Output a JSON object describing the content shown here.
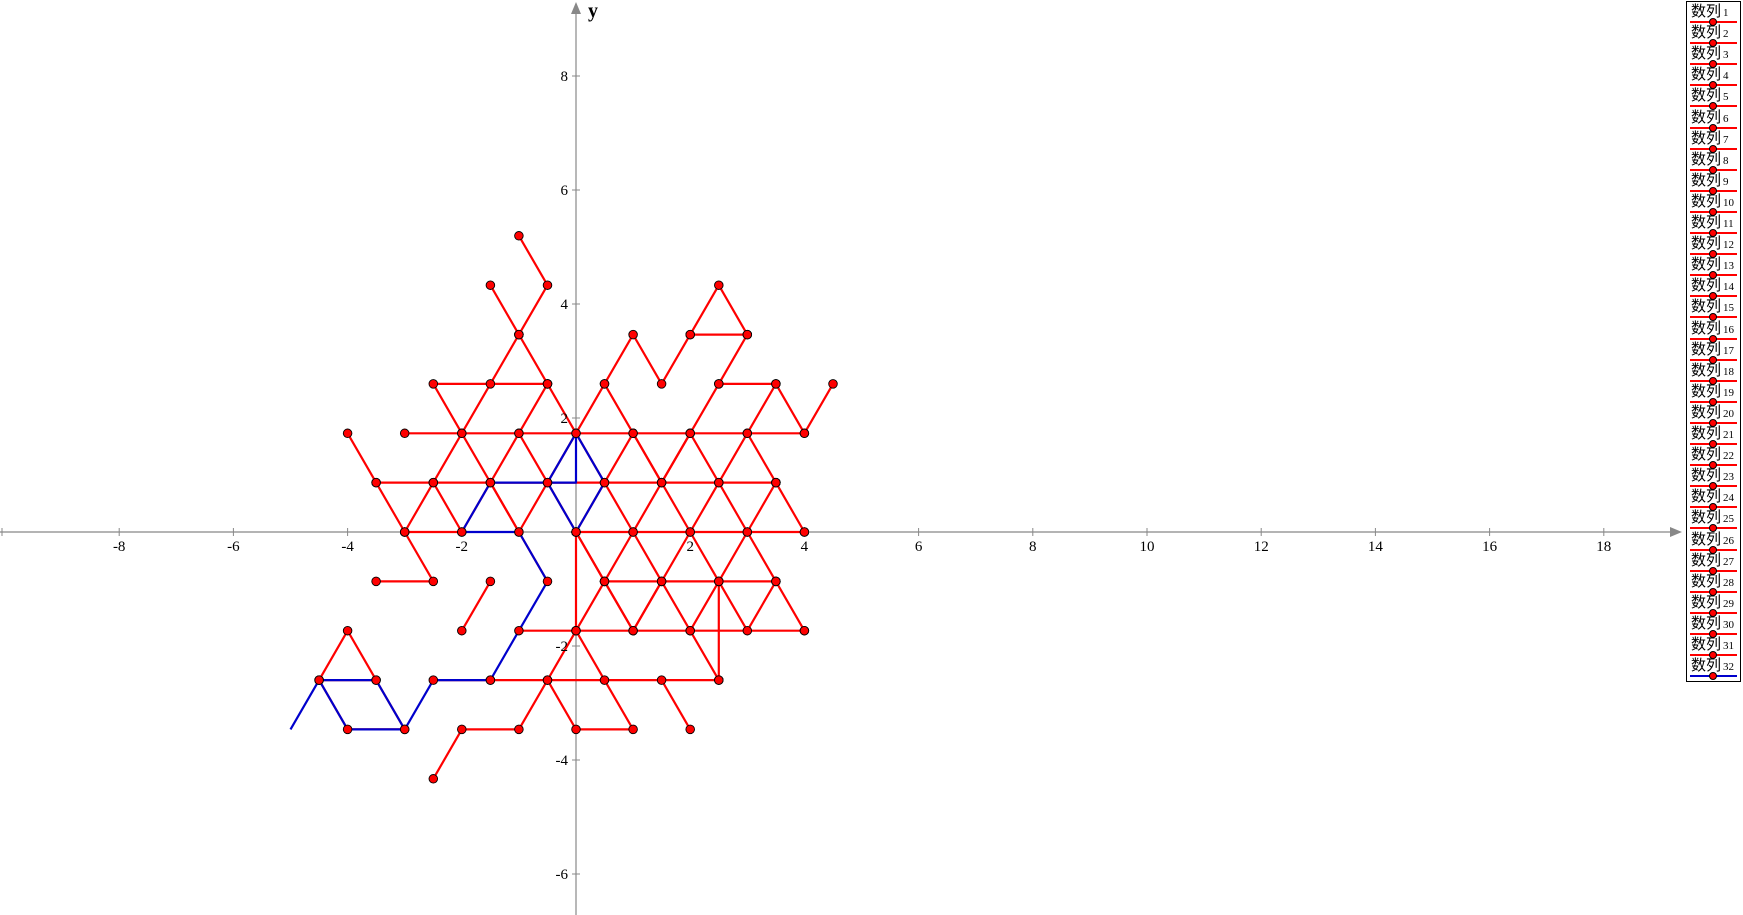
{
  "chart_data": {
    "type": "line",
    "title": "",
    "xlabel": "",
    "ylabel": "y",
    "xlim": [
      -10,
      20
    ],
    "ylim": [
      -6.7,
      9.3
    ],
    "x_ticks": [
      -8,
      -6,
      -4,
      -2,
      2,
      4,
      6,
      8,
      10,
      12,
      14,
      16,
      18
    ],
    "y_ticks": [
      -6,
      -4,
      -2,
      2,
      4,
      6,
      8
    ],
    "legend_position": "right",
    "colors": {
      "red": "#ff0000",
      "blue": "#0000cc",
      "marker_edge": "#000000"
    },
    "series": [
      {
        "name": "数列 1",
        "color": "red",
        "points": [
          [
            -1,
            5.196
          ],
          [
            -0.5,
            4.33
          ],
          [
            -1,
            3.464
          ],
          [
            -1.5,
            4.33
          ]
        ]
      },
      {
        "name": "数列 2",
        "color": "red",
        "points": [
          [
            -1,
            3.464
          ],
          [
            -1.5,
            2.598
          ],
          [
            -2,
            1.732
          ],
          [
            -2.5,
            2.598
          ],
          [
            -0.5,
            2.598
          ]
        ]
      },
      {
        "name": "数列 3",
        "color": "red",
        "points": [
          [
            -1,
            3.464
          ],
          [
            -0.5,
            2.598
          ],
          [
            0,
            1.732
          ],
          [
            0.5,
            2.598
          ],
          [
            1,
            3.464
          ],
          [
            1.5,
            2.598
          ],
          [
            2,
            3.464
          ],
          [
            2.5,
            4.33
          ],
          [
            3,
            3.464
          ],
          [
            2,
            3.464
          ]
        ]
      },
      {
        "name": "数列 4",
        "color": "red",
        "points": [
          [
            3,
            3.464
          ],
          [
            2.5,
            2.598
          ],
          [
            2,
            1.732
          ],
          [
            1.5,
            0.866
          ],
          [
            1,
            1.732
          ],
          [
            0.5,
            2.598
          ]
        ]
      },
      {
        "name": "数列 5",
        "color": "red",
        "points": [
          [
            2.5,
            2.598
          ],
          [
            3.5,
            2.598
          ],
          [
            3,
            1.732
          ],
          [
            2.5,
            0.866
          ],
          [
            2,
            1.732
          ]
        ]
      },
      {
        "name": "数列 6",
        "color": "red",
        "points": [
          [
            3.5,
            2.598
          ],
          [
            4,
            1.732
          ],
          [
            4.5,
            2.598
          ]
        ]
      },
      {
        "name": "数列 7",
        "color": "red",
        "points": [
          [
            -4,
            1.732
          ],
          [
            -3.5,
            0.866
          ],
          [
            -3,
            0
          ],
          [
            -2.5,
            -0.866
          ],
          [
            -3.5,
            -0.866
          ]
        ]
      },
      {
        "name": "数列 8",
        "color": "red",
        "points": [
          [
            -3,
            1.732
          ],
          [
            4,
            1.732
          ]
        ]
      },
      {
        "name": "数列 9",
        "color": "red",
        "points": [
          [
            -3.5,
            0.866
          ],
          [
            3.5,
            0.866
          ]
        ]
      },
      {
        "name": "数列 10",
        "color": "red",
        "points": [
          [
            -3,
            0
          ],
          [
            -2,
            0
          ]
        ]
      },
      {
        "name": "数列 11",
        "color": "red",
        "points": [
          [
            0,
            0
          ],
          [
            4,
            0
          ]
        ]
      },
      {
        "name": "数列 12",
        "color": "red",
        "points": [
          [
            -3,
            0
          ],
          [
            -2.5,
            0.866
          ],
          [
            -2,
            1.732
          ],
          [
            -1.5,
            0.866
          ],
          [
            -1,
            1.732
          ],
          [
            -0.5,
            2.598
          ]
        ]
      },
      {
        "name": "数列 13",
        "color": "red",
        "points": [
          [
            -2.5,
            0.866
          ],
          [
            -2,
            0
          ],
          [
            -1.5,
            0.866
          ],
          [
            -1,
            0
          ],
          [
            -0.5,
            0.866
          ],
          [
            0,
            0
          ],
          [
            0.5,
            0.866
          ],
          [
            1,
            0
          ],
          [
            1.5,
            0.866
          ],
          [
            2,
            0
          ],
          [
            2.5,
            0.866
          ],
          [
            3,
            0
          ],
          [
            3.5,
            0.866
          ],
          [
            4,
            0
          ]
        ]
      },
      {
        "name": "数列 14",
        "color": "red",
        "points": [
          [
            -1,
            1.732
          ],
          [
            -0.5,
            0.866
          ],
          [
            0,
            1.732
          ],
          [
            0.5,
            0.866
          ],
          [
            1,
            1.732
          ],
          [
            1.5,
            0.866
          ],
          [
            2,
            1.732
          ]
        ]
      },
      {
        "name": "数列 15",
        "color": "red",
        "points": [
          [
            -1.5,
            0.866
          ],
          [
            -1,
            0
          ],
          [
            -0.5,
            -0.866
          ]
        ]
      },
      {
        "name": "数列 16",
        "color": "red",
        "points": [
          [
            3,
            1.732
          ],
          [
            3.5,
            0.866
          ]
        ]
      },
      {
        "name": "数列 17",
        "color": "red",
        "points": [
          [
            0.5,
            -0.866
          ],
          [
            3.5,
            -0.866
          ]
        ]
      },
      {
        "name": "数列 18",
        "color": "red",
        "points": [
          [
            0,
            0
          ],
          [
            0.5,
            -0.866
          ],
          [
            1,
            0
          ],
          [
            1.5,
            -0.866
          ],
          [
            2,
            0
          ],
          [
            2.5,
            -0.866
          ],
          [
            3,
            0
          ],
          [
            3.5,
            -0.866
          ],
          [
            4,
            -1.732
          ]
        ]
      },
      {
        "name": "数列 19",
        "color": "red",
        "points": [
          [
            0,
            0
          ],
          [
            0,
            -1.732
          ],
          [
            0.5,
            -0.866
          ],
          [
            1,
            -1.732
          ],
          [
            1.5,
            -0.866
          ],
          [
            2,
            -1.732
          ],
          [
            2.5,
            -0.866
          ],
          [
            3,
            -1.732
          ],
          [
            3.5,
            -0.866
          ]
        ]
      },
      {
        "name": "数列 20",
        "color": "red",
        "points": [
          [
            0,
            0
          ],
          [
            0.5,
            -0.866
          ],
          [
            1,
            -1.732
          ],
          [
            1.5,
            -0.866
          ]
        ]
      },
      {
        "name": "数列 21",
        "color": "red",
        "points": [
          [
            -2,
            -1.732
          ],
          [
            -1.5,
            -0.866
          ]
        ]
      },
      {
        "name": "数列 22",
        "color": "red",
        "points": [
          [
            -1,
            -1.732
          ],
          [
            4,
            -1.732
          ]
        ]
      },
      {
        "name": "数列 23",
        "color": "red",
        "points": [
          [
            2,
            -1.732
          ],
          [
            2.5,
            -2.598
          ],
          [
            2.5,
            -0.866
          ]
        ]
      },
      {
        "name": "数列 24",
        "color": "red",
        "points": [
          [
            -1.5,
            -2.598
          ],
          [
            2.5,
            -2.598
          ]
        ]
      },
      {
        "name": "数列 25",
        "color": "red",
        "points": [
          [
            0,
            -1.732
          ],
          [
            0.5,
            -2.598
          ],
          [
            1,
            -3.464
          ],
          [
            0,
            -3.464
          ],
          [
            -0.5,
            -2.598
          ],
          [
            0,
            -1.732
          ]
        ]
      },
      {
        "name": "数列 26",
        "color": "red",
        "points": [
          [
            -0.5,
            -2.598
          ],
          [
            -1,
            -3.464
          ],
          [
            -2,
            -3.464
          ],
          [
            -2.5,
            -4.33
          ]
        ]
      },
      {
        "name": "数列 27",
        "color": "red",
        "points": [
          [
            1.5,
            -2.598
          ],
          [
            2,
            -3.464
          ]
        ]
      },
      {
        "name": "数列 28",
        "color": "red",
        "points": [
          [
            -2.5,
            -2.598
          ],
          [
            -1.5,
            -2.598
          ]
        ]
      },
      {
        "name": "数列 29",
        "color": "red",
        "points": [
          [
            -4.5,
            -2.598
          ],
          [
            -4,
            -1.732
          ],
          [
            -3.5,
            -2.598
          ],
          [
            -3,
            -3.464
          ]
        ]
      },
      {
        "name": "数列 30",
        "color": "red",
        "points": [
          [
            -4.5,
            -2.598
          ],
          [
            -3.5,
            -2.598
          ]
        ]
      },
      {
        "name": "数列 31",
        "color": "red",
        "points": [
          [
            -4.5,
            -2.598
          ],
          [
            -4,
            -3.464
          ],
          [
            -3,
            -3.464
          ]
        ]
      },
      {
        "name": "数列 32",
        "color": "blue",
        "points": [
          [
            -5,
            -3.464
          ],
          [
            -4.5,
            -2.598
          ],
          [
            -3.5,
            -2.598
          ],
          [
            -3,
            -3.464
          ],
          [
            -4,
            -3.464
          ],
          [
            -4.5,
            -2.598
          ],
          [
            -4,
            -3.464
          ],
          [
            -3,
            -3.464
          ],
          [
            -2.5,
            -2.598
          ],
          [
            -1.5,
            -2.598
          ],
          [
            -1,
            -1.732
          ],
          [
            -0.5,
            -0.866
          ],
          [
            -1,
            0
          ],
          [
            -2,
            0
          ],
          [
            -1.5,
            0.866
          ],
          [
            0,
            0.866
          ],
          [
            0,
            1.732
          ],
          [
            -0.5,
            0.866
          ],
          [
            0,
            0
          ],
          [
            0.5,
            0.866
          ],
          [
            0,
            1.732
          ],
          [
            -0.5,
            0.866
          ],
          [
            -1.5,
            0.866
          ]
        ]
      }
    ]
  }
}
